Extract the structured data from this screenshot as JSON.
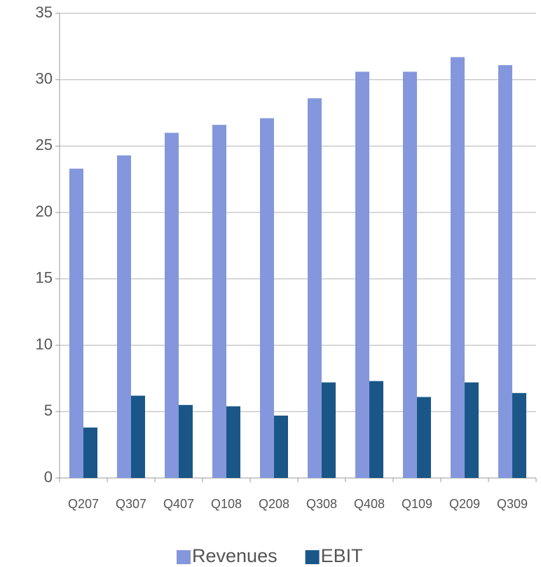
{
  "chart_data": {
    "type": "bar",
    "categories": [
      "Q207",
      "Q307",
      "Q407",
      "Q108",
      "Q208",
      "Q308",
      "Q408",
      "Q109",
      "Q209",
      "Q309"
    ],
    "series": [
      {
        "name": "Revenues",
        "color": "#8497dc",
        "values": [
          23.3,
          24.3,
          26.0,
          26.6,
          27.1,
          28.6,
          30.6,
          30.6,
          31.7,
          31.1
        ]
      },
      {
        "name": "EBIT",
        "color": "#1a5788",
        "values": [
          3.8,
          6.2,
          5.5,
          5.4,
          4.7,
          7.2,
          7.3,
          6.1,
          7.2,
          6.4
        ]
      }
    ],
    "ylim": [
      0,
      35
    ],
    "yticks": [
      0,
      5,
      10,
      15,
      20,
      25,
      30,
      35
    ],
    "grid": true,
    "legend": "bottom"
  }
}
